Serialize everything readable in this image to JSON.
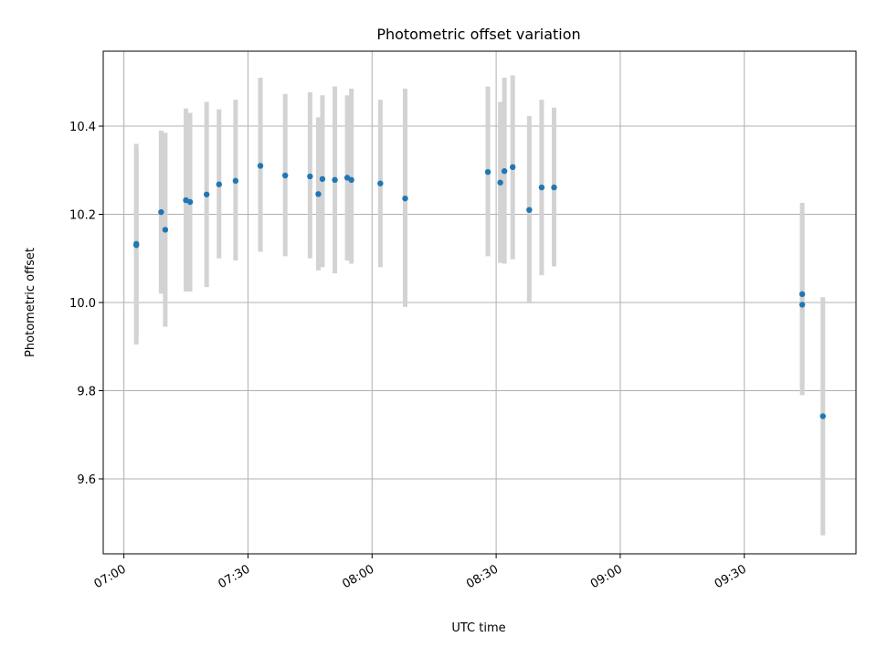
{
  "chart_data": {
    "type": "scatter",
    "title": "Photometric offset variation",
    "xlabel": "UTC time",
    "ylabel": "Photometric offset",
    "x_ticks": [
      "07:00",
      "07:30",
      "08:00",
      "08:30",
      "09:00",
      "09:30"
    ],
    "y_ticks": [
      "9.6",
      "9.8",
      "10.0",
      "10.2",
      "10.4"
    ],
    "xlim": [
      "06:55",
      "09:57"
    ],
    "ylim": [
      9.43,
      10.57
    ],
    "grid": true,
    "colors": {
      "points": "#1f77b4",
      "errorbars": "#d3d3d3"
    },
    "points": [
      {
        "t": "07:03",
        "y": 10.133,
        "lo": 9.905,
        "hi": 10.36
      },
      {
        "t": "07:03",
        "y": 10.13,
        "lo": 9.915,
        "hi": 10.345
      },
      {
        "t": "07:09",
        "y": 10.205,
        "lo": 10.02,
        "hi": 10.39
      },
      {
        "t": "07:10",
        "y": 10.165,
        "lo": 9.945,
        "hi": 10.385
      },
      {
        "t": "07:15",
        "y": 10.232,
        "lo": 10.025,
        "hi": 10.44
      },
      {
        "t": "07:16",
        "y": 10.228,
        "lo": 10.025,
        "hi": 10.43
      },
      {
        "t": "07:20",
        "y": 10.245,
        "lo": 10.035,
        "hi": 10.455
      },
      {
        "t": "07:23",
        "y": 10.268,
        "lo": 10.1,
        "hi": 10.438
      },
      {
        "t": "07:27",
        "y": 10.276,
        "lo": 10.095,
        "hi": 10.46
      },
      {
        "t": "07:33",
        "y": 10.31,
        "lo": 10.115,
        "hi": 10.51
      },
      {
        "t": "07:39",
        "y": 10.288,
        "lo": 10.105,
        "hi": 10.473
      },
      {
        "t": "07:45",
        "y": 10.286,
        "lo": 10.1,
        "hi": 10.477
      },
      {
        "t": "07:47",
        "y": 10.246,
        "lo": 10.073,
        "hi": 10.42
      },
      {
        "t": "07:48",
        "y": 10.28,
        "lo": 10.08,
        "hi": 10.47
      },
      {
        "t": "07:51",
        "y": 10.278,
        "lo": 10.066,
        "hi": 10.49
      },
      {
        "t": "07:54",
        "y": 10.283,
        "lo": 10.095,
        "hi": 10.47
      },
      {
        "t": "07:55",
        "y": 10.278,
        "lo": 10.088,
        "hi": 10.485
      },
      {
        "t": "08:02",
        "y": 10.27,
        "lo": 10.08,
        "hi": 10.46
      },
      {
        "t": "08:08",
        "y": 10.236,
        "lo": 9.99,
        "hi": 10.485
      },
      {
        "t": "08:28",
        "y": 10.296,
        "lo": 10.105,
        "hi": 10.49
      },
      {
        "t": "08:31",
        "y": 10.272,
        "lo": 10.09,
        "hi": 10.455
      },
      {
        "t": "08:32",
        "y": 10.298,
        "lo": 10.088,
        "hi": 10.51
      },
      {
        "t": "08:34",
        "y": 10.307,
        "lo": 10.098,
        "hi": 10.515
      },
      {
        "t": "08:38",
        "y": 10.21,
        "lo": 9.998,
        "hi": 10.423
      },
      {
        "t": "08:41",
        "y": 10.261,
        "lo": 10.062,
        "hi": 10.46
      },
      {
        "t": "08:44",
        "y": 10.261,
        "lo": 10.082,
        "hi": 10.442
      },
      {
        "t": "09:44",
        "y": 10.019,
        "lo": 9.808,
        "hi": 10.226
      },
      {
        "t": "09:44",
        "y": 9.995,
        "lo": 9.79,
        "hi": 10.2
      },
      {
        "t": "09:49",
        "y": 9.742,
        "lo": 9.472,
        "hi": 10.012
      }
    ]
  }
}
